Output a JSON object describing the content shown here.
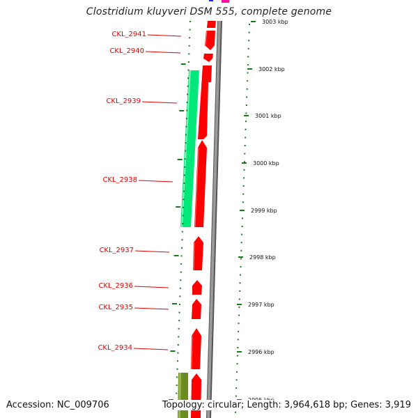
{
  "title": "Clostridium kluyveri DSM 555, complete genome",
  "accession_text": "Accession: NC_009706",
  "topology_text": "Topology: circular; Length: 3,964,618 bp; Genes: 3,919",
  "gene_labels": [
    "CKL_2941",
    "CKL_2940",
    "CKL_2939",
    "CKL_2938",
    "CKL_2937",
    "CKL_2936",
    "CKL_2935",
    "CKL_2934"
  ],
  "scale_labels": [
    "3003 kbp",
    "3002 kbp",
    "3001 kbp",
    "3000 kbp",
    "2999 kbp",
    "2998 kbp",
    "2997 kbp",
    "2996 kbp",
    "2995 kbp"
  ],
  "colors": {
    "forward_cds": "#ff0000",
    "reverse_cds": "#00e87a",
    "other_feature": "#6b8c1f",
    "backbone": "#8c8c8c",
    "tick": "#1a7a1a",
    "label": "#e00000",
    "magenta_feature": "#ff10a0",
    "blue_feature": "#2020ff"
  }
}
